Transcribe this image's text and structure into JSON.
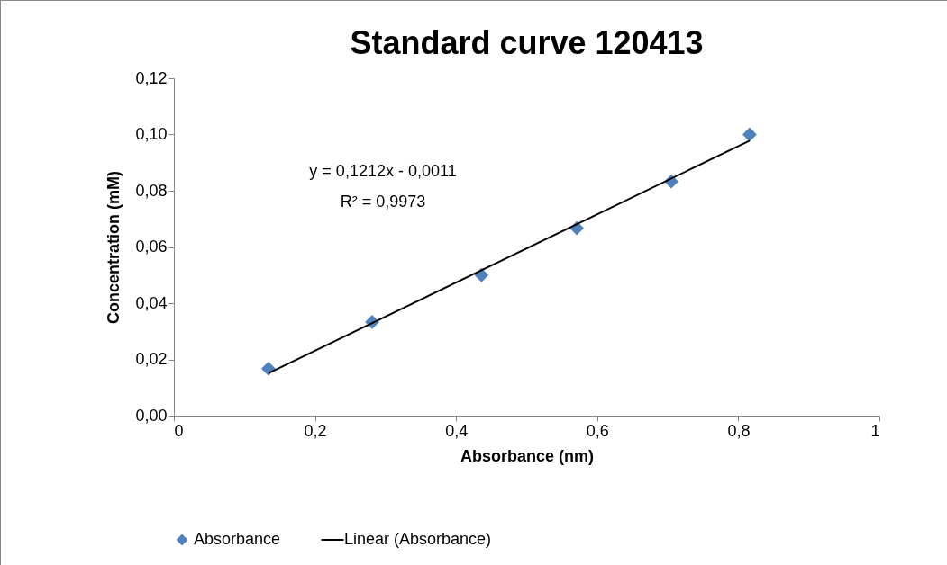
{
  "chart_data": {
    "type": "scatter",
    "title": "Standard curve 120413",
    "xlabel": "Absorbance (nm)",
    "ylabel": "Concentration (mM)",
    "annotations": [
      "y = 0,1212x - 0,0011",
      "R² = 0,9973"
    ],
    "xlim": [
      0,
      1
    ],
    "xticks": [
      0,
      {
        "value": 0.2,
        "label": "0,2"
      },
      {
        "value": 0.4,
        "label": "0,4"
      },
      {
        "value": 0.6,
        "label": "0,6"
      },
      {
        "value": 0.8,
        "label": "0,8"
      },
      1
    ],
    "ylim": [
      0,
      0.12
    ],
    "yticks": [
      {
        "value": 0,
        "label": "0,00"
      },
      {
        "value": 0.02,
        "label": "0,02"
      },
      {
        "value": 0.04,
        "label": "0,04"
      },
      {
        "value": 0.06,
        "label": "0,06"
      },
      {
        "value": 0.08,
        "label": "0,08"
      },
      {
        "value": 0.1,
        "label": "0,10"
      },
      {
        "value": 0.12,
        "label": "0,12"
      }
    ],
    "grid": false,
    "legend": "bottom",
    "series": [
      {
        "name": "Absorbance",
        "marker": "diamond",
        "color": "#4f81bd",
        "x": [
          0.134,
          0.281,
          0.436,
          0.571,
          0.705,
          0.816
        ],
        "values": [
          0.0167,
          0.0333,
          0.05,
          0.0667,
          0.0833,
          0.1
        ]
      },
      {
        "name": "Linear (Absorbance)",
        "type": "line",
        "marker": "none",
        "color": "#000000",
        "line_style": "solid",
        "x": [
          0.134,
          0.816
        ],
        "values": [
          0.0151,
          0.0978
        ]
      }
    ]
  }
}
